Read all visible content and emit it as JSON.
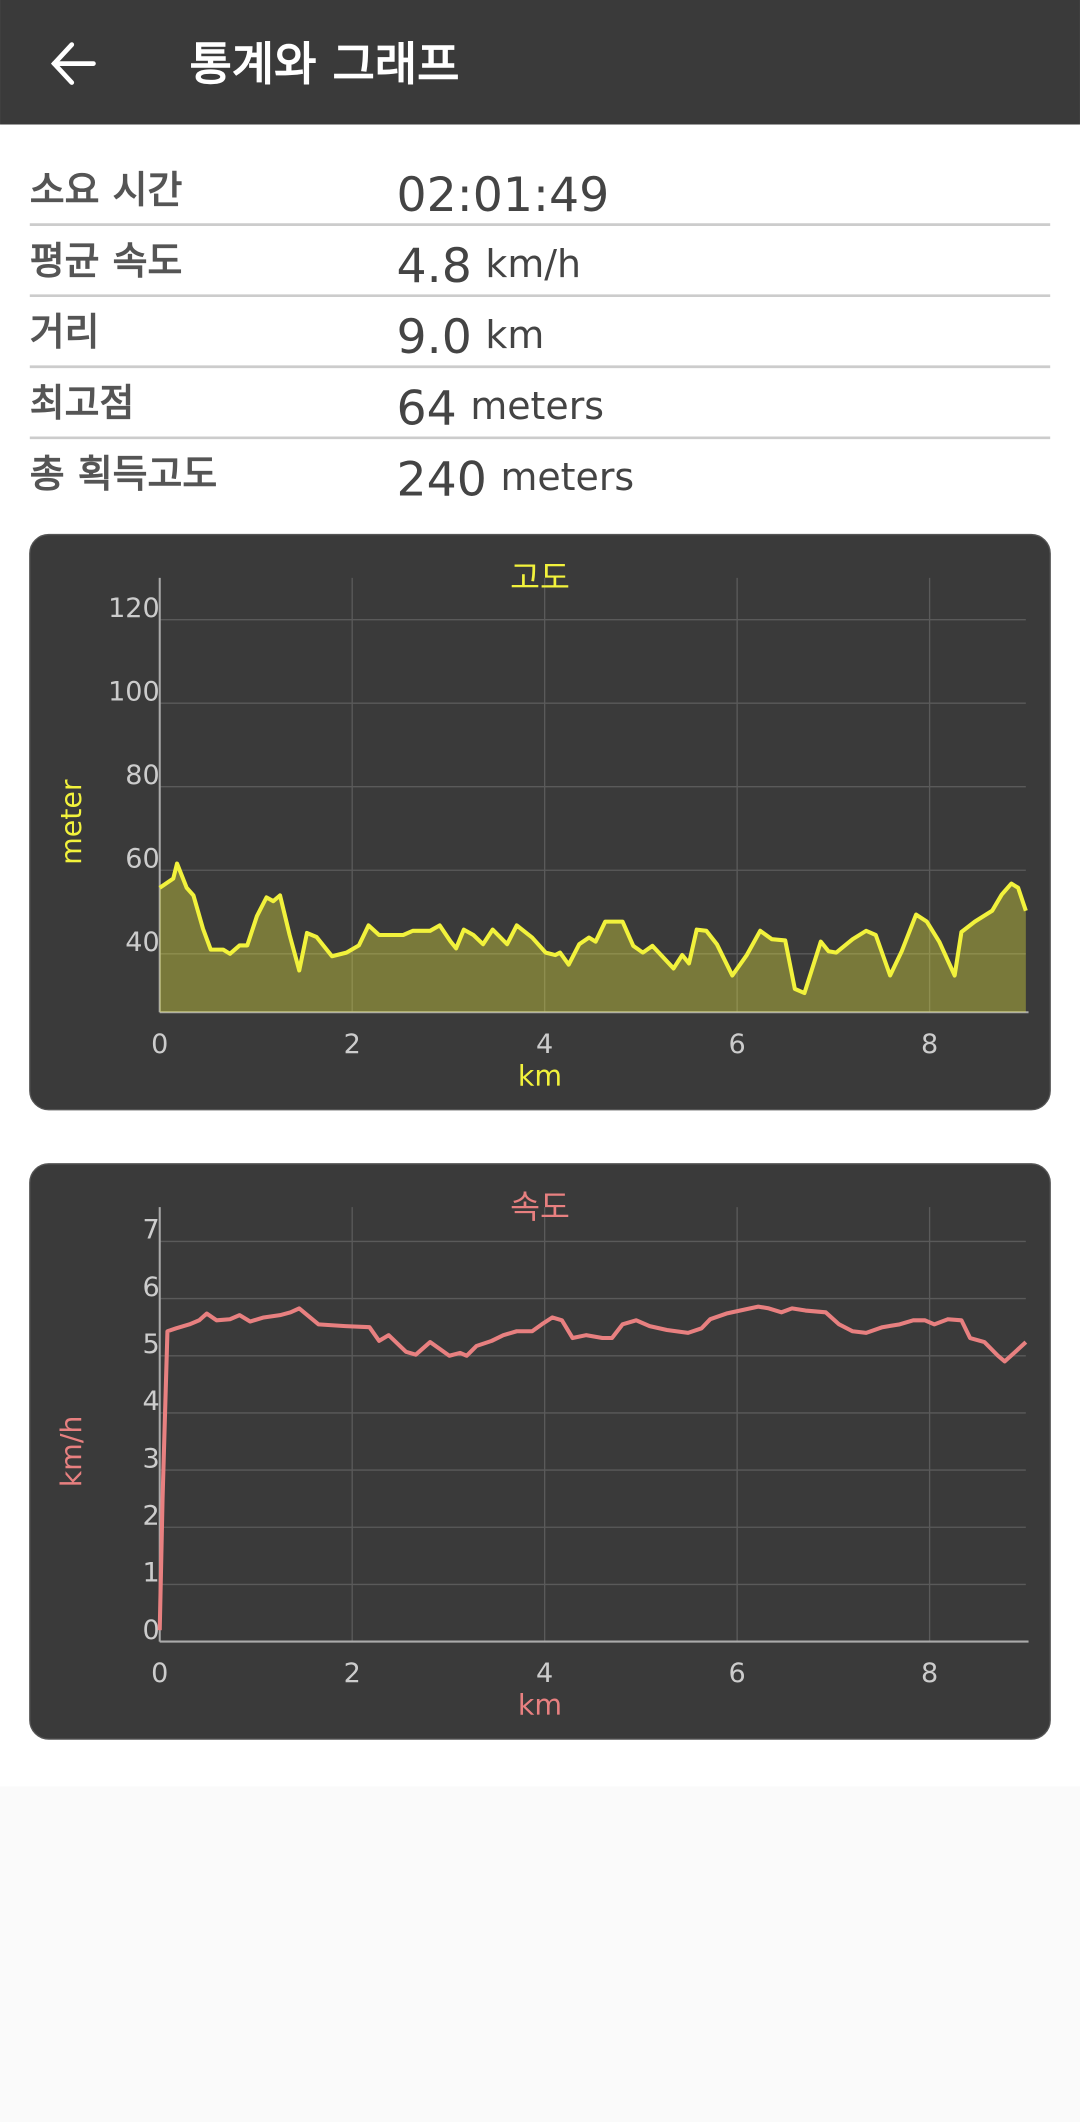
{
  "header": {
    "title": "통계와 그래프"
  },
  "stats": [
    {
      "label": "소요 시간",
      "value": "02:01:49"
    },
    {
      "label": "평균 속도",
      "value": 4.8,
      "unit": "km/h"
    },
    {
      "label": "거리",
      "value": "9.0",
      "unit": "km"
    },
    {
      "label": "최고점",
      "value": 64,
      "unit": "meters"
    },
    {
      "label": "총 획득고도",
      "value": 240,
      "unit": "meters"
    }
  ],
  "chart_data": [
    {
      "type": "line",
      "title": "고도",
      "xlabel": "km",
      "ylabel": "meter",
      "color": "#f2f23c",
      "area": true,
      "grid": true,
      "xlim": [
        0,
        9
      ],
      "ylim": [
        26,
        130
      ],
      "xticks": [
        0,
        2,
        4,
        6,
        8
      ],
      "yticks": [
        40,
        60,
        80,
        100,
        120
      ],
      "x": [
        0,
        0.14,
        0.18,
        0.28,
        0.35,
        0.45,
        0.53,
        0.66,
        0.73,
        0.83,
        0.91,
        1.01,
        1.11,
        1.18,
        1.25,
        1.35,
        1.45,
        1.53,
        1.63,
        1.79,
        1.94,
        2.07,
        2.17,
        2.28,
        2.53,
        2.63,
        2.81,
        2.91,
        3.02,
        3.08,
        3.16,
        3.26,
        3.36,
        3.46,
        3.61,
        3.71,
        3.87,
        4.01,
        4.11,
        4.16,
        4.25,
        4.36,
        4.46,
        4.53,
        4.63,
        4.81,
        4.92,
        5.02,
        5.12,
        5.34,
        5.43,
        5.5,
        5.58,
        5.68,
        5.79,
        5.95,
        6.1,
        6.24,
        6.36,
        6.5,
        6.6,
        6.7,
        6.87,
        6.95,
        7.03,
        7.2,
        7.34,
        7.44,
        7.59,
        7.71,
        7.86,
        7.97,
        8.1,
        8.26,
        8.33,
        8.47,
        8.65,
        8.75,
        8.85,
        8.92,
        9.0
      ],
      "values": [
        55.8,
        58,
        61.6,
        55.8,
        54,
        46,
        41,
        41,
        40,
        42,
        42,
        49,
        53.5,
        52.6,
        54,
        44.5,
        36,
        45,
        44,
        39.4,
        40.3,
        42,
        46.8,
        44.5,
        44.5,
        45.5,
        45.5,
        46.8,
        43,
        41.3,
        45.8,
        44.5,
        42.3,
        45.8,
        42.3,
        46.8,
        43.9,
        40.3,
        39.7,
        40.3,
        37.4,
        42.3,
        43.9,
        42.9,
        47.7,
        47.7,
        41.9,
        40.3,
        41.9,
        36.5,
        39.7,
        37.7,
        45.8,
        45.5,
        42.3,
        34.8,
        39.7,
        45.5,
        43.5,
        43.2,
        31.6,
        30.6,
        42.9,
        40.6,
        40.3,
        43.5,
        45.5,
        44.5,
        34.8,
        40.6,
        49.4,
        47.7,
        42.9,
        34.8,
        45.2,
        47.7,
        50.3,
        54.2,
        56.8,
        55.8,
        50.3
      ]
    },
    {
      "type": "line",
      "title": "속도",
      "xlabel": "km",
      "ylabel": "km/h",
      "color": "#e88080",
      "area": false,
      "grid": true,
      "xlim": [
        0,
        9
      ],
      "ylim": [
        0,
        7.6
      ],
      "xticks": [
        0,
        2,
        4,
        6,
        8
      ],
      "yticks": [
        0,
        1,
        2,
        3,
        4,
        5,
        6,
        7
      ],
      "x": [
        0,
        0.03,
        0.08,
        0.17,
        0.31,
        0.41,
        0.49,
        0.59,
        0.73,
        0.83,
        0.94,
        1.08,
        1.25,
        1.36,
        1.45,
        1.65,
        1.93,
        2.18,
        2.28,
        2.38,
        2.56,
        2.66,
        2.81,
        2.91,
        3.01,
        3.12,
        3.19,
        3.29,
        3.45,
        3.57,
        3.71,
        3.87,
        3.97,
        4.08,
        4.18,
        4.29,
        4.43,
        4.6,
        4.7,
        4.81,
        4.95,
        5.09,
        5.27,
        5.49,
        5.63,
        5.72,
        5.89,
        6.08,
        6.22,
        6.33,
        6.46,
        6.57,
        6.71,
        6.92,
        7.06,
        7.2,
        7.34,
        7.51,
        7.69,
        7.83,
        7.95,
        8.05,
        8.19,
        8.33,
        8.42,
        8.57,
        8.71,
        8.78,
        8.89,
        9.0
      ],
      "values": [
        0.2,
        2.5,
        5.43,
        5.48,
        5.55,
        5.62,
        5.74,
        5.62,
        5.64,
        5.71,
        5.6,
        5.67,
        5.71,
        5.76,
        5.83,
        5.55,
        5.52,
        5.5,
        5.26,
        5.36,
        5.07,
        5.02,
        5.24,
        5.12,
        5.0,
        5.05,
        5.0,
        5.17,
        5.26,
        5.36,
        5.43,
        5.43,
        5.55,
        5.67,
        5.62,
        5.31,
        5.36,
        5.31,
        5.31,
        5.55,
        5.62,
        5.52,
        5.45,
        5.4,
        5.48,
        5.64,
        5.74,
        5.81,
        5.86,
        5.83,
        5.76,
        5.83,
        5.79,
        5.76,
        5.55,
        5.43,
        5.4,
        5.5,
        5.55,
        5.62,
        5.62,
        5.55,
        5.64,
        5.62,
        5.31,
        5.24,
        5.0,
        4.9,
        5.07,
        5.24
      ]
    }
  ]
}
